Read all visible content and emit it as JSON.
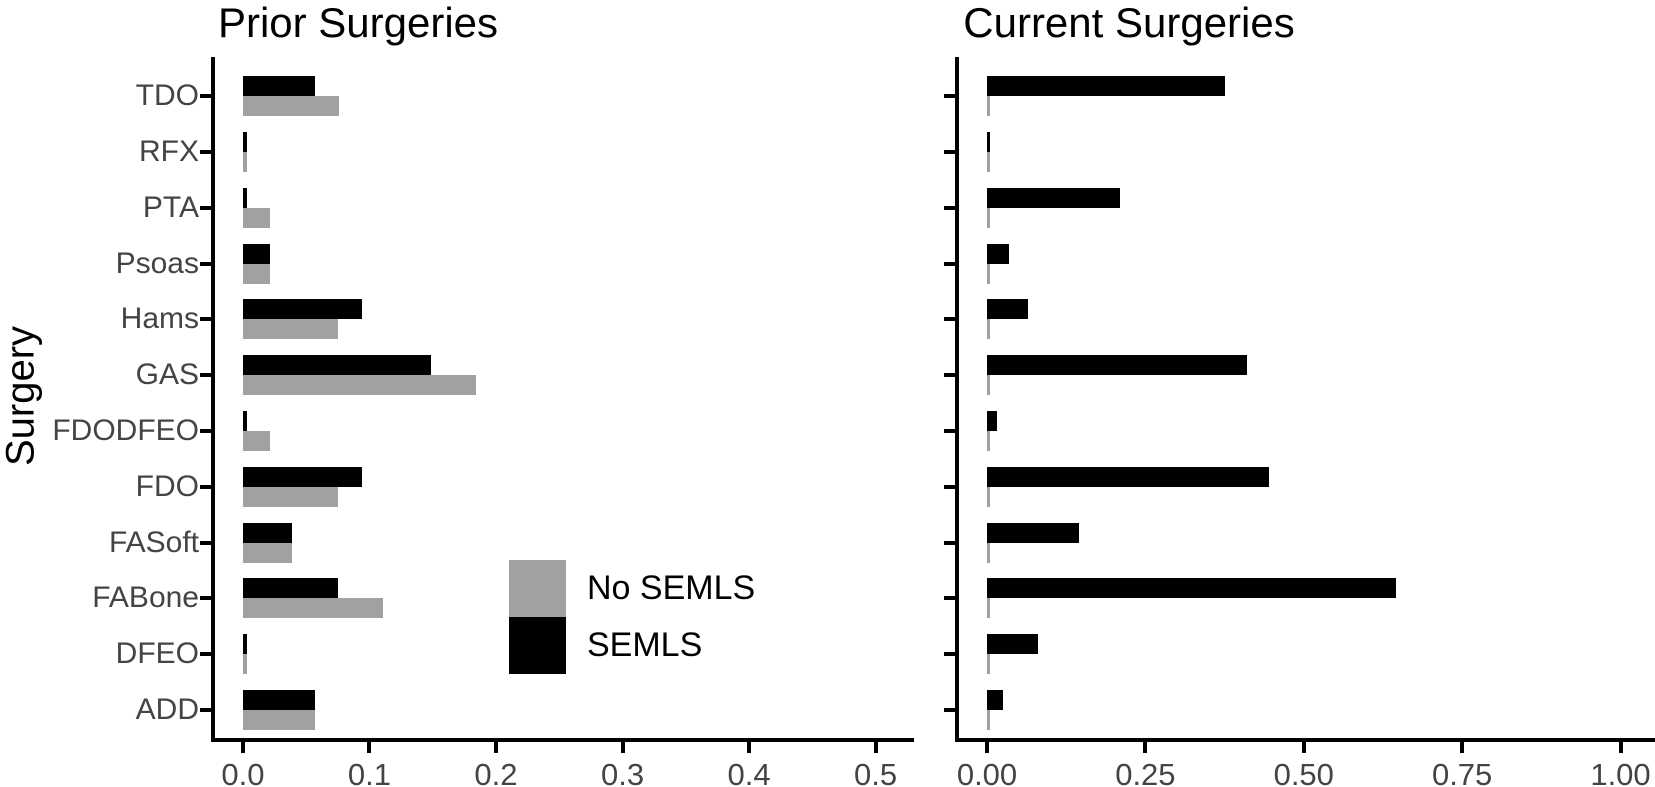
{
  "figure": {
    "ylabel": "Surgery",
    "background": "#ffffff"
  },
  "colors": {
    "semls": "#000000",
    "no_semls": "#a1a1a1",
    "axis_line": "#000000",
    "axis_text": "#444444",
    "title_text": "#000000"
  },
  "legend": {
    "entries": [
      {
        "label": "No SEMLS",
        "color": "#a1a1a1"
      },
      {
        "label": "SEMLS",
        "color": "#000000"
      }
    ]
  },
  "chart_data": [
    {
      "type": "bar",
      "orientation": "horizontal",
      "title": "Prior Surgeries",
      "xlabel": "",
      "ylabel": "Surgery",
      "categories_order": "top-to-bottom",
      "categories": [
        "TDO",
        "RFX",
        "PTA",
        "Psoas",
        "Hams",
        "GAS",
        "FDODFEO",
        "FDO",
        "FASoft",
        "FABone",
        "DFEO",
        "ADD"
      ],
      "series": [
        {
          "name": "SEMLS",
          "color": "#000000",
          "row_position": "top",
          "values": [
            0.057,
            0.003,
            0.003,
            0.021,
            0.094,
            0.149,
            0.003,
            0.094,
            0.039,
            0.075,
            0.003,
            0.057
          ]
        },
        {
          "name": "No SEMLS",
          "color": "#a1a1a1",
          "row_position": "bottom",
          "values": [
            0.076,
            0.003,
            0.021,
            0.021,
            0.075,
            0.184,
            0.021,
            0.075,
            0.039,
            0.111,
            0.003,
            0.057
          ]
        }
      ],
      "xlim": [
        0,
        0.5
      ],
      "xtick_values": [
        0.0,
        0.1,
        0.2,
        0.3,
        0.4,
        0.5
      ],
      "xtick_labels": [
        "0.0",
        "0.1",
        "0.2",
        "0.3",
        "0.4",
        "0.5"
      ],
      "grid": false,
      "show_category_labels": true,
      "legend_position": "inside-lower-middle"
    },
    {
      "type": "bar",
      "orientation": "horizontal",
      "title": "Current Surgeries",
      "xlabel": "",
      "ylabel": "",
      "categories_order": "top-to-bottom",
      "categories": [
        "TDO",
        "RFX",
        "PTA",
        "Psoas",
        "Hams",
        "GAS",
        "FDODFEO",
        "FDO",
        "FASoft",
        "FABone",
        "DFEO",
        "ADD"
      ],
      "series": [
        {
          "name": "SEMLS",
          "color": "#000000",
          "row_position": "top",
          "values": [
            0.375,
            0.005,
            0.21,
            0.035,
            0.065,
            0.41,
            0.015,
            0.445,
            0.145,
            0.645,
            0.08,
            0.025
          ]
        },
        {
          "name": "No SEMLS",
          "color": "#a1a1a1",
          "row_position": "bottom",
          "values": [
            0.004,
            0.004,
            0.004,
            0.004,
            0.004,
            0.004,
            0.004,
            0.004,
            0.004,
            0.004,
            0.004,
            0.004
          ]
        }
      ],
      "xlim": [
        0,
        1.0
      ],
      "xtick_values": [
        0.0,
        0.25,
        0.5,
        0.75,
        1.0
      ],
      "xtick_labels": [
        "0.00",
        "0.25",
        "0.50",
        "0.75",
        "1.00"
      ],
      "grid": false,
      "show_category_labels": false,
      "legend_position": "none"
    }
  ]
}
